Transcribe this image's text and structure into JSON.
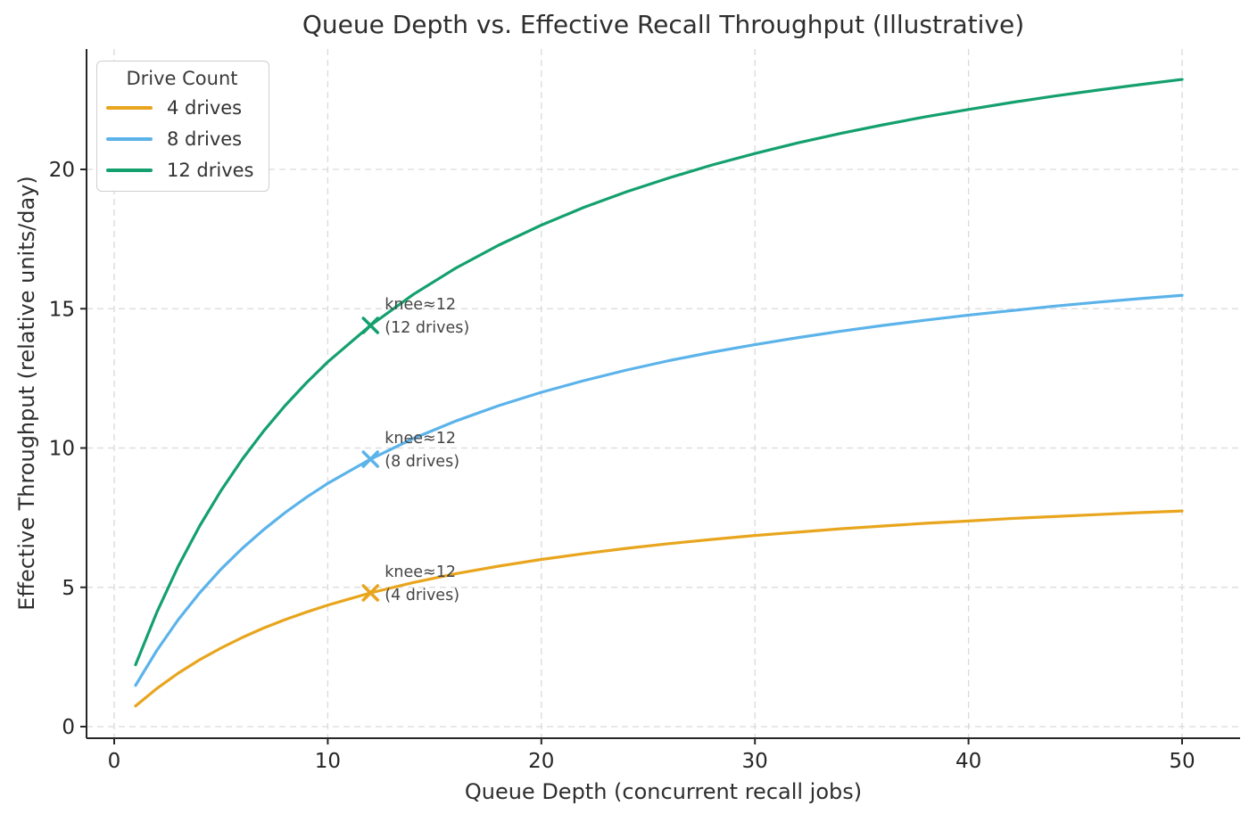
{
  "chart_data": {
    "type": "line",
    "title": "Queue Depth vs. Effective Recall Throughput (Illustrative)",
    "xlabel": "Queue Depth (concurrent recall jobs)",
    "ylabel": "Effective Throughput (relative units/day)",
    "x_ticks": [
      0,
      10,
      20,
      30,
      40,
      50
    ],
    "y_ticks": [
      0,
      5,
      10,
      15,
      20
    ],
    "xlim": [
      -1.45,
      52.45
    ],
    "ylim": [
      -0.42,
      24.35
    ],
    "grid": true,
    "grid_style": "dashed",
    "x": [
      1,
      2,
      3,
      4,
      5,
      6,
      7,
      8,
      9,
      10,
      12,
      14,
      16,
      18,
      20,
      22,
      24,
      26,
      28,
      30,
      32,
      34,
      36,
      38,
      40,
      42,
      44,
      46,
      48,
      50
    ],
    "series": [
      {
        "name": "4 drives",
        "color": "#E8A51D",
        "values": [
          0.74,
          1.37,
          1.92,
          2.4,
          2.82,
          3.2,
          3.54,
          3.84,
          4.11,
          4.36,
          4.8,
          5.17,
          5.49,
          5.76,
          6.0,
          6.21,
          6.4,
          6.57,
          6.72,
          6.86,
          6.98,
          7.1,
          7.2,
          7.3,
          7.38,
          7.47,
          7.54,
          7.61,
          7.68,
          7.74
        ]
      },
      {
        "name": "8 drives",
        "color": "#5BB3EA",
        "values": [
          1.48,
          2.74,
          3.84,
          4.8,
          5.65,
          6.4,
          7.07,
          7.68,
          8.23,
          8.73,
          9.6,
          10.34,
          10.97,
          11.52,
          12.0,
          12.42,
          12.8,
          13.14,
          13.44,
          13.71,
          13.96,
          14.19,
          14.4,
          14.59,
          14.77,
          14.93,
          15.09,
          15.23,
          15.36,
          15.48
        ]
      },
      {
        "name": "12 drives",
        "color": "#14A06E",
        "values": [
          2.22,
          4.11,
          5.76,
          7.2,
          8.47,
          9.6,
          10.61,
          11.52,
          12.34,
          13.09,
          14.4,
          15.51,
          16.46,
          17.28,
          18.0,
          18.64,
          19.2,
          19.7,
          20.16,
          20.57,
          20.95,
          21.29,
          21.6,
          21.89,
          22.15,
          22.4,
          22.63,
          22.84,
          23.04,
          23.23
        ]
      }
    ],
    "legend": {
      "title": "Drive Count",
      "position": "upper left"
    },
    "annotations": [
      {
        "series": "12 drives",
        "x": 12,
        "y": 14.4,
        "line1": "knee≈12",
        "line2": "(12 drives)",
        "marker": "x"
      },
      {
        "series": "8 drives",
        "x": 12,
        "y": 9.6,
        "line1": "knee≈12",
        "line2": "(8 drives)",
        "marker": "x"
      },
      {
        "series": "4 drives",
        "x": 12,
        "y": 4.8,
        "line1": "knee≈12",
        "line2": "(4 drives)",
        "marker": "x"
      }
    ]
  },
  "style": {
    "grid_color": "#d9d9d9",
    "spine_color": "#262626",
    "tick_text_color": "#262626",
    "annotation_text_color": "#444444",
    "background": "#ffffff"
  }
}
